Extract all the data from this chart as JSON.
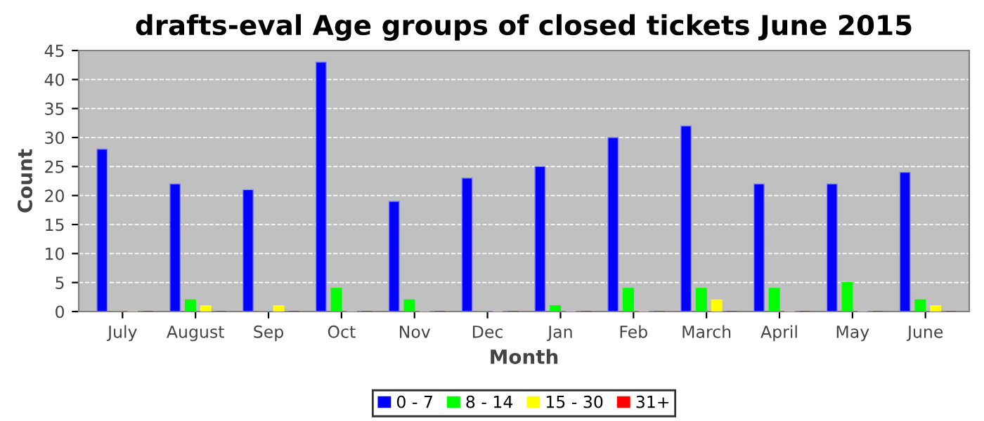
{
  "chart_data": {
    "type": "bar",
    "title": "drafts-eval Age groups of closed tickets June 2015",
    "xlabel": "Month",
    "ylabel": "Count",
    "categories": [
      "July",
      "August",
      "Sep",
      "Oct",
      "Nov",
      "Dec",
      "Jan",
      "Feb",
      "March",
      "April",
      "May",
      "June"
    ],
    "series": [
      {
        "name": "0 - 7",
        "color": "#0000ff",
        "values": [
          28,
          22,
          21,
          43,
          19,
          23,
          25,
          30,
          32,
          22,
          22,
          24
        ]
      },
      {
        "name": "8 - 14",
        "color": "#00ff00",
        "values": [
          0,
          2,
          0,
          4,
          2,
          0,
          1,
          4,
          4,
          4,
          5,
          2
        ]
      },
      {
        "name": "15 - 30",
        "color": "#ffff00",
        "values": [
          0,
          1,
          1,
          0,
          0,
          0,
          0,
          0,
          2,
          0,
          0,
          1
        ]
      },
      {
        "name": "31+",
        "color": "#ff0000",
        "values": [
          0,
          0,
          0,
          0,
          0,
          0,
          0,
          0,
          0,
          0,
          0,
          0
        ]
      }
    ],
    "ylim": [
      0,
      45
    ],
    "yticks": [
      0,
      5,
      10,
      15,
      20,
      25,
      30,
      35,
      40,
      45
    ],
    "grid": "y",
    "legend": "bottom"
  }
}
